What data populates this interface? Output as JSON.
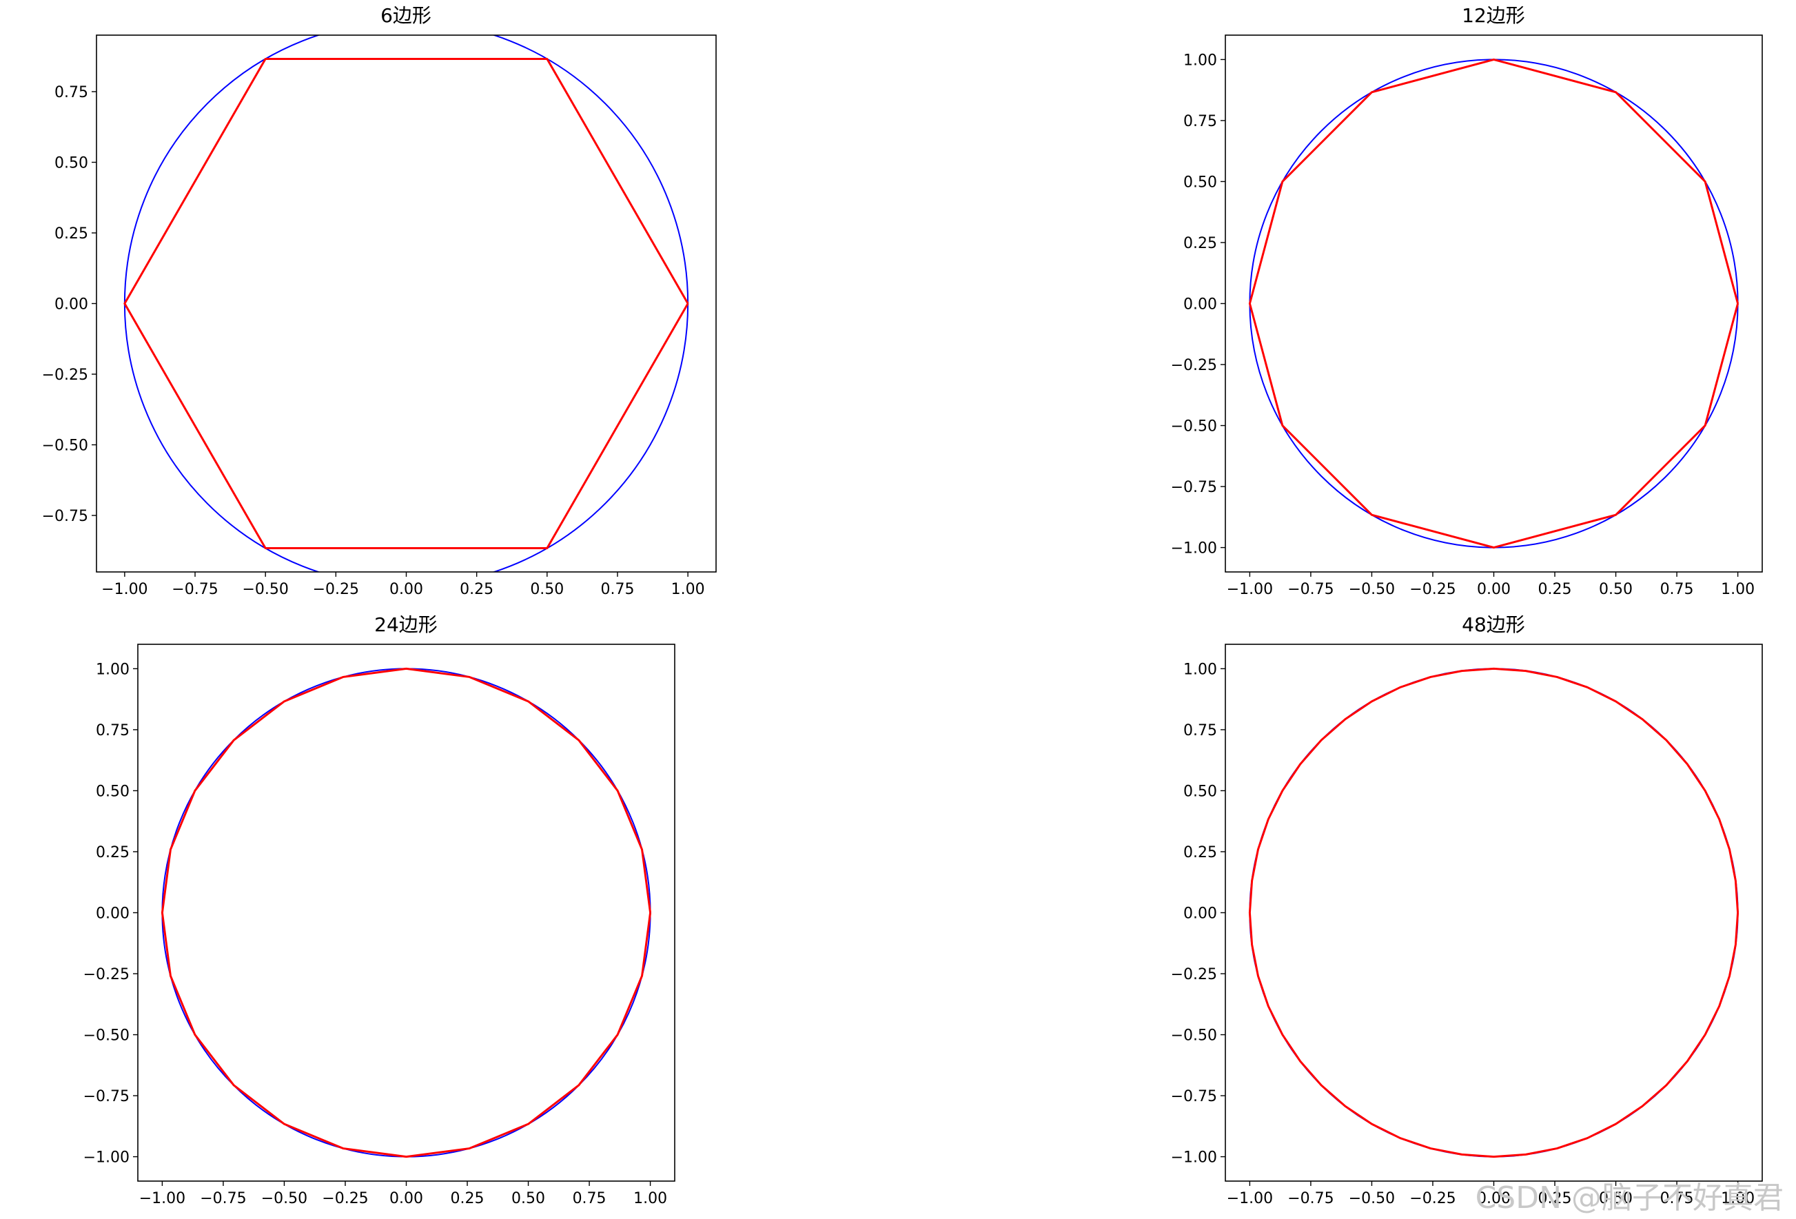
{
  "colors": {
    "circle": "#0000ff",
    "polygon": "#ff0000",
    "axes": "#000000",
    "background": "#ffffff",
    "watermark": "#c8c8c8"
  },
  "watermark": "CSDN @脑子不好真君",
  "chart_data": [
    {
      "type": "line",
      "title": "6边形",
      "sides": 6,
      "xlim": [
        -1.1,
        1.1
      ],
      "ylim": [
        -0.95,
        0.95
      ],
      "xticks": [
        -1.0,
        -0.75,
        -0.5,
        -0.25,
        0.0,
        0.25,
        0.5,
        0.75,
        1.0
      ],
      "xtick_labels": [
        "−1.00",
        "−0.75",
        "−0.50",
        "−0.25",
        "0.00",
        "0.25",
        "0.50",
        "0.75",
        "1.00"
      ],
      "yticks": [
        -0.75,
        -0.5,
        -0.25,
        0.0,
        0.25,
        0.5,
        0.75
      ],
      "ytick_labels": [
        "−0.75",
        "−0.50",
        "−0.25",
        "0.00",
        "0.25",
        "0.50",
        "0.75"
      ],
      "series": [
        {
          "kind": "circle",
          "radius": 1.0
        },
        {
          "kind": "polygon",
          "vertices": [
            [
              1.0,
              0.0
            ],
            [
              0.5,
              0.866
            ],
            [
              -0.5,
              0.866
            ],
            [
              -1.0,
              0.0
            ],
            [
              -0.5,
              -0.866
            ],
            [
              0.5,
              -0.866
            ],
            [
              1.0,
              0.0
            ]
          ]
        }
      ]
    },
    {
      "type": "line",
      "title": "12边形",
      "sides": 12,
      "xlim": [
        -1.1,
        1.1
      ],
      "ylim": [
        -1.1,
        1.1
      ],
      "xticks": [
        -1.0,
        -0.75,
        -0.5,
        -0.25,
        0.0,
        0.25,
        0.5,
        0.75,
        1.0
      ],
      "xtick_labels": [
        "−1.00",
        "−0.75",
        "−0.50",
        "−0.25",
        "0.00",
        "0.25",
        "0.50",
        "0.75",
        "1.00"
      ],
      "yticks": [
        -1.0,
        -0.75,
        -0.5,
        -0.25,
        0.0,
        0.25,
        0.5,
        0.75,
        1.0
      ],
      "ytick_labels": [
        "−1.00",
        "−0.75",
        "−0.50",
        "−0.25",
        "0.00",
        "0.25",
        "0.50",
        "0.75",
        "1.00"
      ],
      "series": [
        {
          "kind": "circle",
          "radius": 1.0
        },
        {
          "kind": "polygon",
          "vertices": [
            [
              1.0,
              0.0
            ],
            [
              0.866,
              0.5
            ],
            [
              0.5,
              0.866
            ],
            [
              0.0,
              1.0
            ],
            [
              -0.5,
              0.866
            ],
            [
              -0.866,
              0.5
            ],
            [
              -1.0,
              0.0
            ],
            [
              -0.866,
              -0.5
            ],
            [
              -0.5,
              -0.866
            ],
            [
              0.0,
              -1.0
            ],
            [
              0.5,
              -0.866
            ],
            [
              0.866,
              -0.5
            ],
            [
              1.0,
              0.0
            ]
          ]
        }
      ]
    },
    {
      "type": "line",
      "title": "24边形",
      "sides": 24,
      "xlim": [
        -1.1,
        1.1
      ],
      "ylim": [
        -1.1,
        1.1
      ],
      "xticks": [
        -1.0,
        -0.75,
        -0.5,
        -0.25,
        0.0,
        0.25,
        0.5,
        0.75,
        1.0
      ],
      "xtick_labels": [
        "−1.00",
        "−0.75",
        "−0.50",
        "−0.25",
        "0.00",
        "0.25",
        "0.50",
        "0.75",
        "1.00"
      ],
      "yticks": [
        -1.0,
        -0.75,
        -0.5,
        -0.25,
        0.0,
        0.25,
        0.5,
        0.75,
        1.0
      ],
      "ytick_labels": [
        "−1.00",
        "−0.75",
        "−0.50",
        "−0.25",
        "0.00",
        "0.25",
        "0.50",
        "0.75",
        "1.00"
      ],
      "series": [
        {
          "kind": "circle",
          "radius": 1.0
        },
        {
          "kind": "polygon",
          "vertices": [
            [
              1.0,
              0.0
            ],
            [
              0.966,
              0.259
            ],
            [
              0.866,
              0.5
            ],
            [
              0.707,
              0.707
            ],
            [
              0.5,
              0.866
            ],
            [
              0.259,
              0.966
            ],
            [
              0.0,
              1.0
            ],
            [
              -0.259,
              0.966
            ],
            [
              -0.5,
              0.866
            ],
            [
              -0.707,
              0.707
            ],
            [
              -0.866,
              0.5
            ],
            [
              -0.966,
              0.259
            ],
            [
              -1.0,
              0.0
            ],
            [
              -0.966,
              -0.259
            ],
            [
              -0.866,
              -0.5
            ],
            [
              -0.707,
              -0.707
            ],
            [
              -0.5,
              -0.866
            ],
            [
              -0.259,
              -0.966
            ],
            [
              0.0,
              -1.0
            ],
            [
              0.259,
              -0.966
            ],
            [
              0.5,
              -0.866
            ],
            [
              0.707,
              -0.707
            ],
            [
              0.866,
              -0.5
            ],
            [
              0.966,
              -0.259
            ],
            [
              1.0,
              0.0
            ]
          ]
        }
      ]
    },
    {
      "type": "line",
      "title": "48边形",
      "sides": 48,
      "xlim": [
        -1.1,
        1.1
      ],
      "ylim": [
        -1.1,
        1.1
      ],
      "xticks": [
        -1.0,
        -0.75,
        -0.5,
        -0.25,
        0.0,
        0.25,
        0.5,
        0.75,
        1.0
      ],
      "xtick_labels": [
        "−1.00",
        "−0.75",
        "−0.50",
        "−0.25",
        "0.00",
        "0.25",
        "0.50",
        "0.75",
        "1.00"
      ],
      "yticks": [
        -1.0,
        -0.75,
        -0.5,
        -0.25,
        0.0,
        0.25,
        0.5,
        0.75,
        1.0
      ],
      "ytick_labels": [
        "−1.00",
        "−0.75",
        "−0.50",
        "−0.25",
        "0.00",
        "0.25",
        "0.50",
        "0.75",
        "1.00"
      ],
      "series": [
        {
          "kind": "circle",
          "radius": 1.0
        },
        {
          "kind": "polygon",
          "vertices": [
            [
              1.0,
              0.0
            ],
            [
              0.991,
              0.131
            ],
            [
              0.966,
              0.259
            ],
            [
              0.924,
              0.383
            ],
            [
              0.866,
              0.5
            ],
            [
              0.793,
              0.609
            ],
            [
              0.707,
              0.707
            ],
            [
              0.609,
              0.793
            ],
            [
              0.5,
              0.866
            ],
            [
              0.383,
              0.924
            ],
            [
              0.259,
              0.966
            ],
            [
              0.131,
              0.991
            ],
            [
              0.0,
              1.0
            ],
            [
              -0.131,
              0.991
            ],
            [
              -0.259,
              0.966
            ],
            [
              -0.383,
              0.924
            ],
            [
              -0.5,
              0.866
            ],
            [
              -0.609,
              0.793
            ],
            [
              -0.707,
              0.707
            ],
            [
              -0.793,
              0.609
            ],
            [
              -0.866,
              0.5
            ],
            [
              -0.924,
              0.383
            ],
            [
              -0.966,
              0.259
            ],
            [
              -0.991,
              0.131
            ],
            [
              -1.0,
              0.0
            ],
            [
              -0.991,
              -0.131
            ],
            [
              -0.966,
              -0.259
            ],
            [
              -0.924,
              -0.383
            ],
            [
              -0.866,
              -0.5
            ],
            [
              -0.793,
              -0.609
            ],
            [
              -0.707,
              -0.707
            ],
            [
              -0.609,
              -0.793
            ],
            [
              -0.5,
              -0.866
            ],
            [
              -0.383,
              -0.924
            ],
            [
              -0.259,
              -0.966
            ],
            [
              -0.131,
              -0.991
            ],
            [
              0.0,
              -1.0
            ],
            [
              0.131,
              -0.991
            ],
            [
              0.259,
              -0.966
            ],
            [
              0.383,
              -0.924
            ],
            [
              0.5,
              -0.866
            ],
            [
              0.609,
              -0.793
            ],
            [
              0.707,
              -0.707
            ],
            [
              0.793,
              -0.609
            ],
            [
              0.866,
              -0.5
            ],
            [
              0.924,
              -0.383
            ],
            [
              0.966,
              -0.259
            ],
            [
              0.991,
              -0.131
            ],
            [
              1.0,
              0.0
            ]
          ]
        }
      ]
    }
  ]
}
